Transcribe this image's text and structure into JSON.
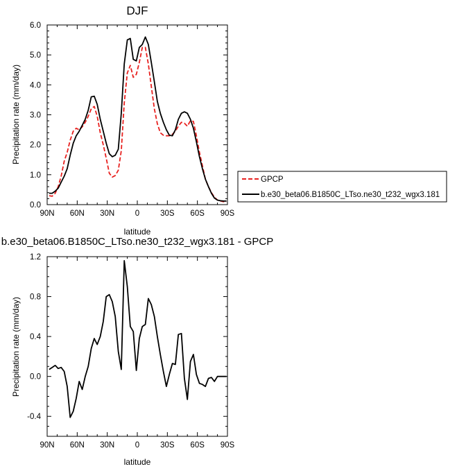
{
  "chart_data": [
    {
      "type": "line",
      "title": "DJF",
      "xlabel": "latitude",
      "ylabel": "Precipitation rate (mm/day)",
      "xlim": [
        90,
        -90
      ],
      "ylim": [
        0,
        6
      ],
      "x_ticks": [
        90,
        60,
        30,
        0,
        -30,
        -60,
        -90
      ],
      "x_tick_labels": [
        "90N",
        "60N",
        "30N",
        "0",
        "30S",
        "60S",
        "90S"
      ],
      "y_ticks": [
        0,
        1,
        2,
        3,
        4,
        5,
        6
      ],
      "y_tick_labels": [
        "0.0",
        "1.0",
        "2.0",
        "3.0",
        "4.0",
        "5.0",
        "6.0"
      ],
      "legend_position": "right",
      "series": [
        {
          "name": "GPCP",
          "color": "#e8201e",
          "dash": "dashed",
          "x": [
            88,
            85,
            82,
            79,
            76,
            73,
            70,
            67,
            64,
            61,
            58,
            55,
            52,
            49,
            46,
            43,
            40,
            37,
            34,
            31,
            28,
            25,
            22,
            19,
            16,
            13,
            10,
            7,
            4,
            1,
            -2,
            -5,
            -8,
            -11,
            -14,
            -17,
            -20,
            -23,
            -26,
            -29,
            -32,
            -35,
            -38,
            -41,
            -44,
            -47,
            -50,
            -53,
            -56,
            -59,
            -62,
            -65,
            -68,
            -71,
            -74,
            -77,
            -80,
            -83,
            -86,
            -89
          ],
          "y": [
            0.3,
            0.28,
            0.38,
            0.6,
            0.95,
            1.45,
            1.75,
            2.15,
            2.45,
            2.55,
            2.5,
            2.6,
            2.75,
            2.95,
            3.2,
            3.28,
            2.95,
            2.4,
            2.0,
            1.55,
            1.05,
            0.92,
            0.97,
            1.15,
            1.8,
            3.4,
            4.4,
            4.65,
            4.25,
            4.35,
            4.75,
            5.25,
            5.25,
            4.7,
            3.95,
            3.2,
            2.7,
            2.4,
            2.32,
            2.3,
            2.3,
            2.35,
            2.45,
            2.62,
            2.75,
            2.72,
            2.62,
            2.8,
            2.78,
            2.3,
            1.75,
            1.3,
            0.85,
            0.6,
            0.4,
            0.25,
            0.15,
            0.12,
            0.1,
            0.1
          ]
        },
        {
          "name": "b.e30_beta06.B1850C_LTso.ne30_t232_wgx3.181",
          "color": "#000000",
          "dash": "solid",
          "x": [
            88,
            85,
            82,
            79,
            76,
            73,
            70,
            67,
            64,
            61,
            58,
            55,
            52,
            49,
            46,
            43,
            40,
            37,
            34,
            31,
            28,
            25,
            22,
            19,
            16,
            13,
            10,
            7,
            4,
            1,
            -2,
            -5,
            -8,
            -11,
            -14,
            -17,
            -20,
            -23,
            -26,
            -29,
            -32,
            -35,
            -38,
            -41,
            -44,
            -47,
            -50,
            -53,
            -56,
            -59,
            -62,
            -65,
            -68,
            -71,
            -74,
            -77,
            -80,
            -83,
            -86,
            -89
          ],
          "y": [
            0.38,
            0.38,
            0.45,
            0.55,
            0.75,
            0.95,
            1.2,
            1.65,
            2.05,
            2.3,
            2.45,
            2.65,
            2.85,
            3.15,
            3.6,
            3.62,
            3.35,
            2.85,
            2.45,
            2.05,
            1.7,
            1.6,
            1.65,
            1.85,
            3.05,
            4.7,
            5.5,
            5.55,
            4.85,
            4.8,
            5.25,
            5.35,
            5.6,
            5.35,
            4.75,
            4.1,
            3.45,
            3.05,
            2.75,
            2.5,
            2.32,
            2.3,
            2.5,
            2.85,
            3.05,
            3.1,
            3.05,
            2.85,
            2.55,
            2.1,
            1.6,
            1.2,
            0.85,
            0.6,
            0.38,
            0.22,
            0.15,
            0.13,
            0.12,
            0.12
          ]
        }
      ]
    },
    {
      "type": "line",
      "title": "b.e30_beta06.B1850C_LTso.ne30_t232_wgx3.181 - GPCP",
      "xlabel": "latitude",
      "ylabel": "Precipitation rate (mm/day)",
      "xlim": [
        90,
        -90
      ],
      "ylim": [
        -0.6,
        1.2
      ],
      "x_ticks": [
        90,
        60,
        30,
        0,
        -30,
        -60,
        -90
      ],
      "x_tick_labels": [
        "90N",
        "60N",
        "30N",
        "0",
        "30S",
        "60S",
        "90S"
      ],
      "y_ticks": [
        -0.4,
        0,
        0.4,
        0.8,
        1.2
      ],
      "y_tick_labels": [
        "-0.4",
        "0.0",
        "0.4",
        "0.8",
        "1.2"
      ],
      "series": [
        {
          "name": "",
          "color": "#000000",
          "dash": "solid",
          "x": [
            88,
            85,
            82,
            79,
            76,
            73,
            70,
            67,
            64,
            61,
            58,
            55,
            52,
            49,
            46,
            43,
            40,
            37,
            34,
            31,
            28,
            25,
            22,
            19,
            16,
            13,
            10,
            7,
            4,
            1,
            -2,
            -5,
            -8,
            -11,
            -14,
            -17,
            -20,
            -23,
            -26,
            -29,
            -32,
            -35,
            -38,
            -41,
            -44,
            -47,
            -50,
            -53,
            -56,
            -59,
            -62,
            -65,
            -68,
            -71,
            -74,
            -77,
            -80,
            -83,
            -86,
            -89
          ],
          "y": [
            0.07,
            0.09,
            0.11,
            0.08,
            0.09,
            0.05,
            -0.1,
            -0.41,
            -0.35,
            -0.22,
            -0.05,
            -0.13,
            0.0,
            0.1,
            0.28,
            0.38,
            0.32,
            0.4,
            0.55,
            0.8,
            0.82,
            0.75,
            0.6,
            0.25,
            0.07,
            1.16,
            0.9,
            0.5,
            0.45,
            0.06,
            0.38,
            0.5,
            0.52,
            0.78,
            0.72,
            0.6,
            0.4,
            0.22,
            0.05,
            -0.1,
            0.02,
            0.13,
            0.12,
            0.42,
            0.43,
            -0.02,
            -0.23,
            0.15,
            0.22,
            0.02,
            -0.07,
            -0.08,
            -0.1,
            -0.02,
            -0.01,
            -0.05,
            0.0,
            0.0,
            0.0,
            0.0
          ]
        }
      ]
    }
  ]
}
